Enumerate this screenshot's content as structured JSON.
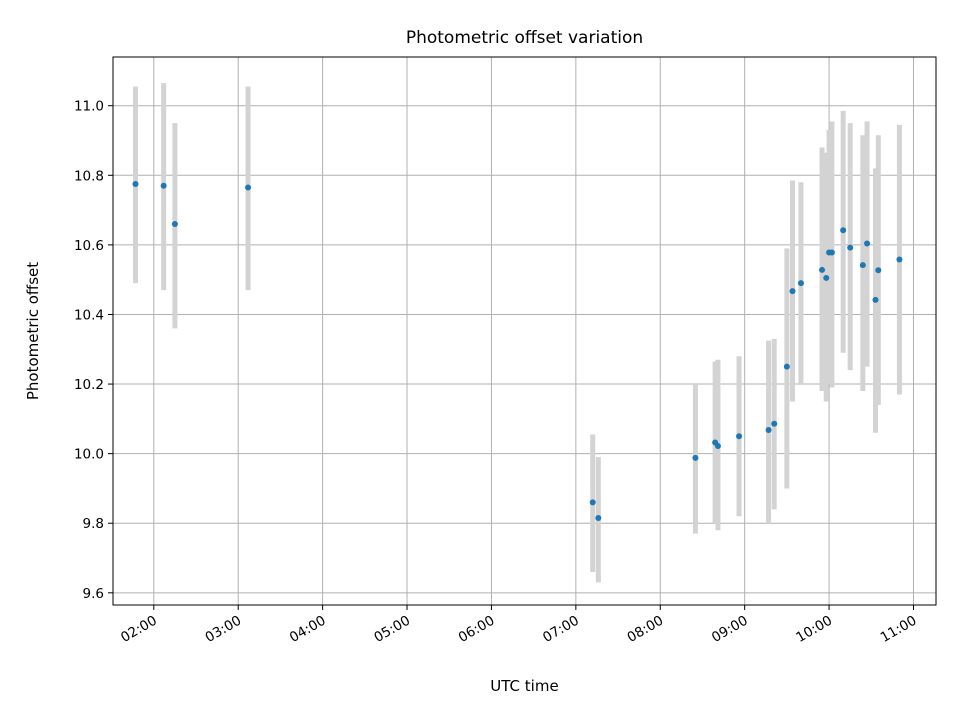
{
  "chart_data": {
    "type": "scatter",
    "title": "Photometric offset variation",
    "xlabel": "UTC time",
    "ylabel": "Photometric offset",
    "x_range": [
      "01:31",
      "11:16"
    ],
    "ylim": [
      9.565,
      11.14
    ],
    "grid": true,
    "x_ticks": [
      "02:00",
      "03:00",
      "04:00",
      "05:00",
      "06:00",
      "07:00",
      "08:00",
      "09:00",
      "10:00",
      "11:00"
    ],
    "y_ticks": [
      9.6,
      9.8,
      10.0,
      10.2,
      10.4,
      10.6,
      10.8,
      11.0
    ],
    "y_tick_labels": [
      "9.6",
      "9.8",
      "10.0",
      "10.2",
      "10.4",
      "10.6",
      "10.8",
      "11.0"
    ],
    "points": [
      {
        "time": "01:47",
        "y": 10.775,
        "err_low": 10.49,
        "err_high": 11.055
      },
      {
        "time": "02:07",
        "y": 10.77,
        "err_low": 10.47,
        "err_high": 11.065
      },
      {
        "time": "02:15",
        "y": 10.66,
        "err_low": 10.36,
        "err_high": 10.95
      },
      {
        "time": "03:07",
        "y": 10.765,
        "err_low": 10.47,
        "err_high": 11.055
      },
      {
        "time": "07:12",
        "y": 9.86,
        "err_low": 9.66,
        "err_high": 10.055
      },
      {
        "time": "07:16",
        "y": 9.815,
        "err_low": 9.63,
        "err_high": 9.99
      },
      {
        "time": "08:25",
        "y": 9.988,
        "err_low": 9.77,
        "err_high": 10.2
      },
      {
        "time": "08:39",
        "y": 10.032,
        "err_low": 9.8,
        "err_high": 10.265
      },
      {
        "time": "08:41",
        "y": 10.022,
        "err_low": 9.78,
        "err_high": 10.27
      },
      {
        "time": "08:56",
        "y": 10.05,
        "err_low": 9.82,
        "err_high": 10.28
      },
      {
        "time": "09:17",
        "y": 10.068,
        "err_low": 9.8,
        "err_high": 10.325
      },
      {
        "time": "09:21",
        "y": 10.086,
        "err_low": 9.84,
        "err_high": 10.33
      },
      {
        "time": "09:30",
        "y": 10.25,
        "err_low": 9.9,
        "err_high": 10.59
      },
      {
        "time": "09:34",
        "y": 10.467,
        "err_low": 10.15,
        "err_high": 10.785
      },
      {
        "time": "09:40",
        "y": 10.49,
        "err_low": 10.2,
        "err_high": 10.78
      },
      {
        "time": "09:55",
        "y": 10.528,
        "err_low": 10.18,
        "err_high": 10.88
      },
      {
        "time": "09:58",
        "y": 10.505,
        "err_low": 10.15,
        "err_high": 10.865
      },
      {
        "time": "10:00",
        "y": 10.578,
        "err_low": 10.2,
        "err_high": 10.93
      },
      {
        "time": "10:02",
        "y": 10.578,
        "err_low": 10.19,
        "err_high": 10.955
      },
      {
        "time": "10:10",
        "y": 10.642,
        "err_low": 10.29,
        "err_high": 10.985
      },
      {
        "time": "10:15",
        "y": 10.592,
        "err_low": 10.24,
        "err_high": 10.95
      },
      {
        "time": "10:24",
        "y": 10.542,
        "err_low": 10.18,
        "err_high": 10.915
      },
      {
        "time": "10:27",
        "y": 10.604,
        "err_low": 10.25,
        "err_high": 10.955
      },
      {
        "time": "10:33",
        "y": 10.442,
        "err_low": 10.06,
        "err_high": 10.82
      },
      {
        "time": "10:35",
        "y": 10.527,
        "err_low": 10.14,
        "err_high": 10.915
      },
      {
        "time": "10:50",
        "y": 10.558,
        "err_low": 10.17,
        "err_high": 10.945
      }
    ],
    "colors": {
      "marker": "#1f77b4",
      "errorbar": "#d3d3d3",
      "grid": "#b0b0b0",
      "axes": "#000000"
    }
  }
}
